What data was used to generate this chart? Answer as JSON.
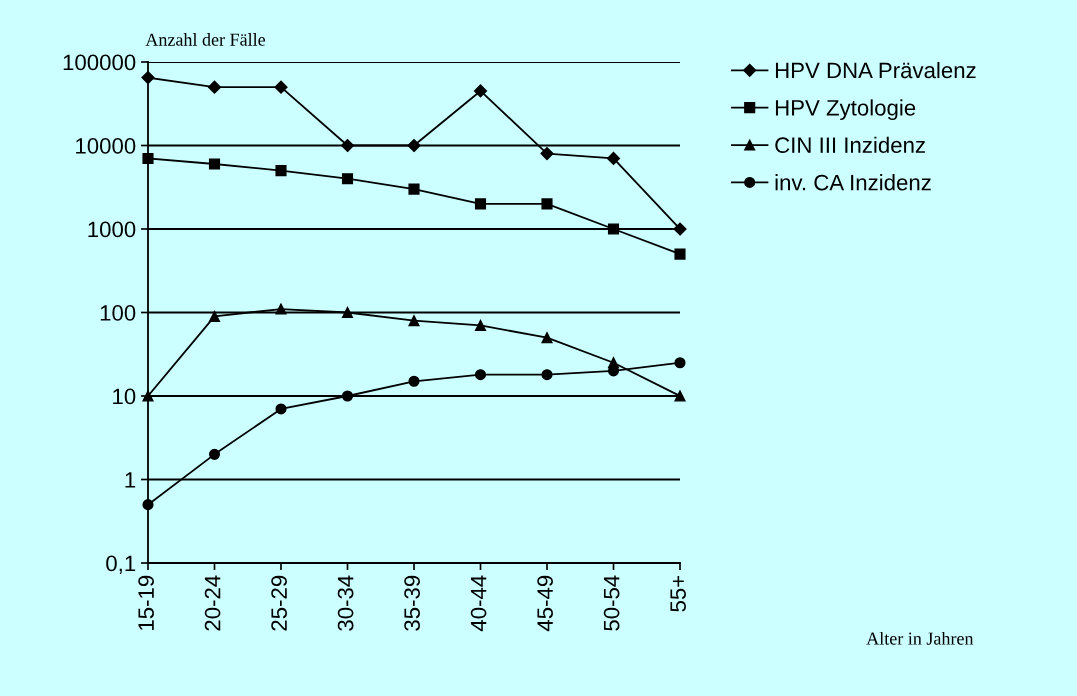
{
  "chart_data": {
    "type": "line",
    "ylabel": "Anzahl der Fälle",
    "annotations": [
      "Alter in Jahren"
    ],
    "categories": [
      "15-19",
      "20-24",
      "25-29",
      "30-34",
      "35-39",
      "40-44",
      "45-49",
      "50-54",
      "55+"
    ],
    "series": [
      {
        "name": "HPV DNA Prävalenz",
        "color": "#000000",
        "marker": "diamond",
        "values": [
          65000,
          50000,
          50000,
          10000,
          10000,
          45000,
          8000,
          7000,
          1000
        ]
      },
      {
        "name": "HPV Zytologie",
        "color": "#000000",
        "marker": "square",
        "values": [
          7000,
          6000,
          5000,
          4000,
          3000,
          2000,
          2000,
          1000,
          500
        ]
      },
      {
        "name": "CIN III Inzidenz",
        "color": "#000000",
        "marker": "triangle",
        "values": [
          10,
          90,
          110,
          100,
          80,
          70,
          50,
          25,
          10
        ]
      },
      {
        "name": "inv. CA Inzidenz",
        "color": "#000000",
        "marker": "circle",
        "values": [
          0.5,
          2,
          7,
          10,
          15,
          18,
          18,
          20,
          25
        ]
      }
    ],
    "log": "y",
    "ylim": [
      0.1,
      100000
    ],
    "yticks": [
      {
        "value": 0.1,
        "label": "0,1"
      },
      1,
      10,
      100,
      1000,
      10000,
      100000
    ],
    "grid": "y",
    "legend": "top right",
    "line_style": "solid"
  }
}
